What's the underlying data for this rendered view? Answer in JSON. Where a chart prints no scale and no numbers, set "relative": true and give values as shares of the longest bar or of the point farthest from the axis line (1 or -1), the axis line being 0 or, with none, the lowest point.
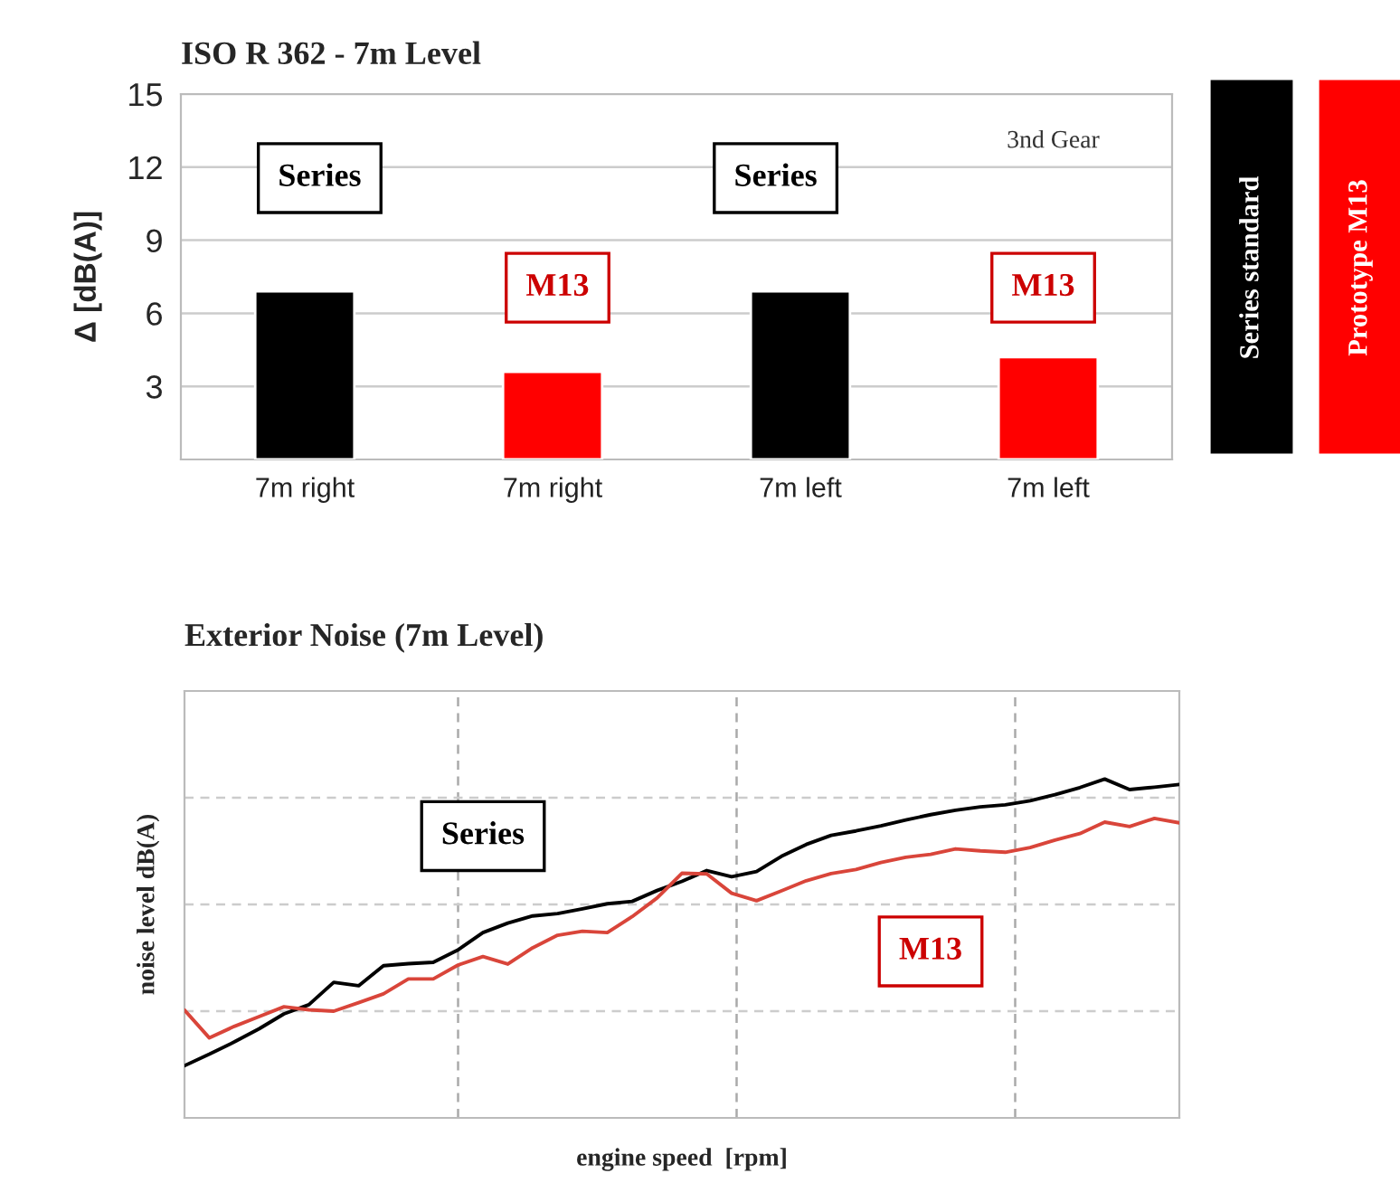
{
  "chart_data": [
    {
      "type": "bar",
      "title": "ISO R 362 - 7m Level",
      "ylabel": "Δ [dB(A)]",
      "categories": [
        "7m right",
        "7m right",
        "7m left",
        "7m left"
      ],
      "series": [
        {
          "name": "Series standard",
          "color": "#000000",
          "values": [
            6.9,
            null,
            6.9,
            null
          ]
        },
        {
          "name": "Prototype M13",
          "color": "#ff0000",
          "values": [
            null,
            3.6,
            null,
            4.2
          ]
        }
      ],
      "ylim": [
        0,
        15
      ],
      "yticks": [
        3,
        6,
        9,
        12,
        15
      ],
      "grid": "y",
      "legend": "right",
      "annotations": [
        "Series",
        "M13",
        "Series",
        "M13",
        "3nd Gear"
      ]
    },
    {
      "type": "line",
      "title": "Exterior Noise (7m Level)",
      "xlabel": "engine speed  [rpm]",
      "ylabel": "noise level dB(A)",
      "relative": true,
      "categories": [
        null,
        null,
        null,
        null,
        null,
        null,
        null,
        null,
        null,
        null,
        null,
        null,
        null,
        null,
        null,
        null,
        null,
        null,
        null,
        null,
        null,
        null,
        null,
        null,
        null,
        null,
        null,
        null,
        null,
        null,
        null,
        null,
        null,
        null,
        null,
        null,
        null,
        null,
        null,
        null,
        null
      ],
      "tick_labels": false,
      "grid": true,
      "series": [
        {
          "color": "#000000",
          "values": [
            0.154,
            0.188,
            0.224,
            0.263,
            0.307,
            0.334,
            0.4,
            0.39,
            0.449,
            0.455,
            0.459,
            0.496,
            0.547,
            0.575,
            0.596,
            0.603,
            0.617,
            0.632,
            0.639,
            0.671,
            0.698,
            0.73,
            0.712,
            0.727,
            0.772,
            0.807,
            0.834,
            0.847,
            0.862,
            0.879,
            0.895,
            0.908,
            0.918,
            0.924,
            0.936,
            0.954,
            0.975,
            1,
            0.969,
            0.976,
            0.984
          ]
        },
        {
          "color": "#d9453a",
          "values": [
            0.318,
            0.236,
            0.27,
            0.299,
            0.328,
            0.319,
            0.315,
            0.34,
            0.366,
            0.41,
            0.41,
            0.451,
            0.476,
            0.454,
            0.502,
            0.539,
            0.551,
            0.547,
            0.594,
            0.649,
            0.722,
            0.72,
            0.663,
            0.641,
            0.67,
            0.7,
            0.721,
            0.733,
            0.754,
            0.769,
            0.778,
            0.794,
            0.788,
            0.784,
            0.798,
            0.82,
            0.839,
            0.873,
            0.86,
            0.884,
            0.871
          ]
        }
      ],
      "annotations": [
        "Series",
        "M13"
      ]
    }
  ]
}
